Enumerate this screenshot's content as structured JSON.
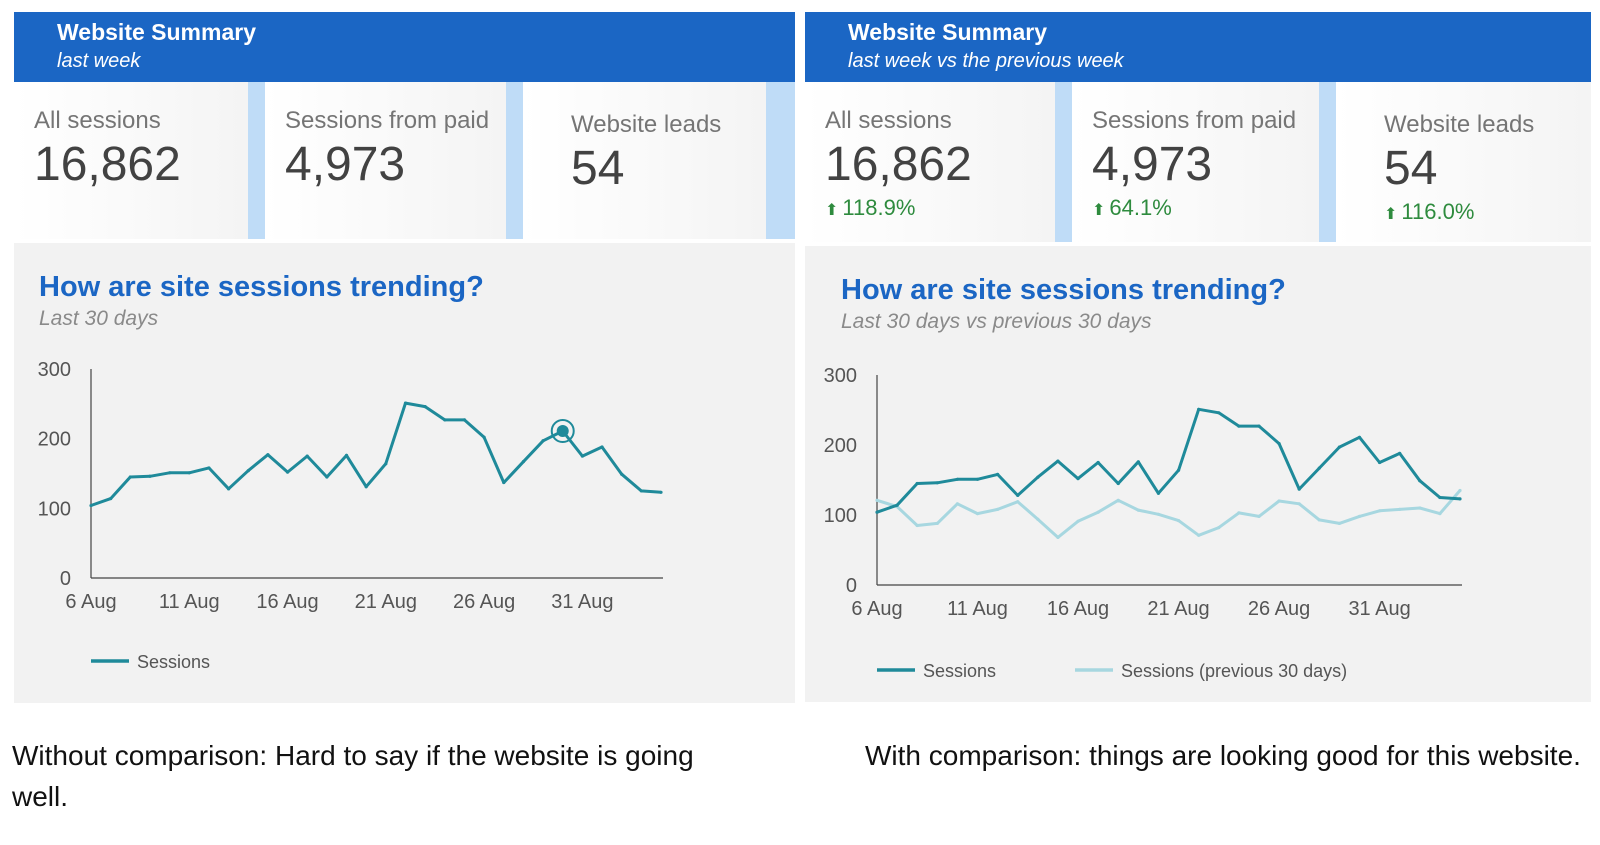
{
  "left": {
    "header": {
      "title": "Website Summary",
      "subtitle": "last week"
    },
    "kpis": [
      {
        "label": "All sessions",
        "value": "16,862"
      },
      {
        "label": "Sessions from paid",
        "value": "4,973"
      },
      {
        "label": "Website leads",
        "value": "54"
      }
    ],
    "chart_title": "How are site sessions trending?",
    "chart_subtitle": "Last 30 days",
    "caption": "Without comparison: Hard to say if the website is going well."
  },
  "right": {
    "header": {
      "title": "Website Summary",
      "subtitle": "last week vs the previous week"
    },
    "kpis": [
      {
        "label": "All sessions",
        "value": "16,862",
        "delta": "118.9%"
      },
      {
        "label": "Sessions from paid",
        "value": "4,973",
        "delta": "64.1%"
      },
      {
        "label": "Website leads",
        "value": "54",
        "delta": "116.0%"
      }
    ],
    "chart_title": "How are site sessions trending?",
    "chart_subtitle": "Last 30 days vs previous 30 days",
    "caption": "With comparison: things are looking good for this website."
  },
  "colors": {
    "header_bg": "#1b66c4",
    "sessions": "#1f8a9a",
    "sessions_prev": "#a7d7e0",
    "positive": "#2e8b3e"
  },
  "icons": {
    "delta_up": "up-arrow-icon",
    "highlight": "highlight-point-icon"
  },
  "chart_data": [
    {
      "type": "line",
      "title": "How are site sessions trending?",
      "subtitle": "Last 30 days",
      "xlabel": "",
      "ylabel": "",
      "ylim": [
        0,
        300
      ],
      "yticks": [
        "0",
        "100",
        "200",
        "300"
      ],
      "xticks": [
        "6 Aug",
        "11 Aug",
        "16 Aug",
        "21 Aug",
        "26 Aug",
        "31 Aug"
      ],
      "x": [
        "6 Aug",
        "7 Aug",
        "8 Aug",
        "9 Aug",
        "10 Aug",
        "11 Aug",
        "12 Aug",
        "13 Aug",
        "14 Aug",
        "15 Aug",
        "16 Aug",
        "17 Aug",
        "18 Aug",
        "19 Aug",
        "20 Aug",
        "21 Aug",
        "22 Aug",
        "23 Aug",
        "24 Aug",
        "25 Aug",
        "26 Aug",
        "27 Aug",
        "28 Aug",
        "29 Aug",
        "30 Aug",
        "31 Aug",
        "1 Sep",
        "2 Sep",
        "3 Sep",
        "4 Sep"
      ],
      "series": [
        {
          "name": "Sessions",
          "values": [
            104,
            114,
            145,
            146,
            151,
            151,
            158,
            128,
            154,
            177,
            152,
            175,
            145,
            176,
            131,
            164,
            251,
            246,
            227,
            227,
            202,
            137,
            167,
            197,
            211,
            175,
            188,
            149,
            125,
            123
          ]
        }
      ],
      "highlight_index": 24,
      "legend": "bottom-left"
    },
    {
      "type": "line",
      "title": "How are site sessions trending?",
      "subtitle": "Last 30 days vs previous 30 days",
      "xlabel": "",
      "ylabel": "",
      "ylim": [
        0,
        300
      ],
      "yticks": [
        "0",
        "100",
        "200",
        "300"
      ],
      "xticks": [
        "6 Aug",
        "11 Aug",
        "16 Aug",
        "21 Aug",
        "26 Aug",
        "31 Aug"
      ],
      "x": [
        "6 Aug",
        "7 Aug",
        "8 Aug",
        "9 Aug",
        "10 Aug",
        "11 Aug",
        "12 Aug",
        "13 Aug",
        "14 Aug",
        "15 Aug",
        "16 Aug",
        "17 Aug",
        "18 Aug",
        "19 Aug",
        "20 Aug",
        "21 Aug",
        "22 Aug",
        "23 Aug",
        "24 Aug",
        "25 Aug",
        "26 Aug",
        "27 Aug",
        "28 Aug",
        "29 Aug",
        "30 Aug",
        "31 Aug",
        "1 Sep",
        "2 Sep",
        "3 Sep",
        "4 Sep"
      ],
      "series": [
        {
          "name": "Sessions",
          "values": [
            104,
            114,
            145,
            146,
            151,
            151,
            158,
            128,
            154,
            177,
            152,
            175,
            145,
            176,
            131,
            164,
            251,
            246,
            227,
            227,
            202,
            137,
            167,
            197,
            211,
            175,
            188,
            149,
            125,
            123
          ]
        },
        {
          "name": "Sessions (previous 30 days)",
          "values": [
            121,
            112,
            85,
            88,
            116,
            102,
            108,
            119,
            94,
            68,
            91,
            104,
            121,
            107,
            101,
            92,
            71,
            82,
            103,
            98,
            120,
            116,
            93,
            88,
            98,
            106,
            108,
            110,
            102,
            135
          ]
        }
      ],
      "legend": "bottom-left"
    }
  ]
}
